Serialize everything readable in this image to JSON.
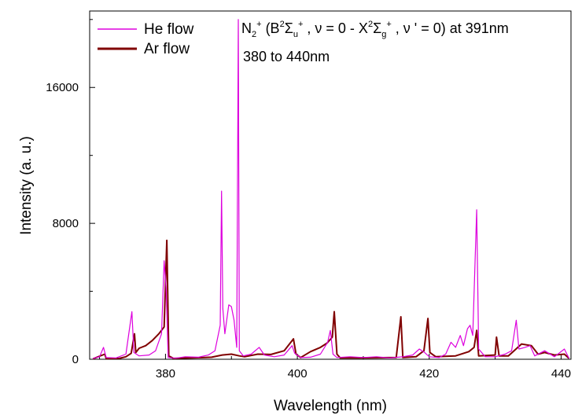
{
  "chart_data": {
    "type": "line",
    "title": "",
    "xlabel": "Wavelength (nm)",
    "ylabel": "Intensity (a. u.)",
    "xlim": [
      368.5,
      441.5
    ],
    "ylim": [
      0,
      20500
    ],
    "x_ticks": [
      380,
      400,
      420,
      440
    ],
    "x_tick_labels": [
      "380",
      "400",
      "420",
      "440"
    ],
    "y_ticks": [
      0,
      8000,
      16000
    ],
    "y_tick_labels": [
      "0",
      "8000",
      "16000"
    ],
    "legend_position": "top-left",
    "annotation": {
      "line1": {
        "n": "N",
        "n_sub": "2",
        "n_sup": "+",
        "open": " (B",
        "b_sup": "2",
        "sigma1": "Σ",
        "sigma1_sub": "u",
        "sigma1_sup": "+",
        "mid1": " , ν  = 0 - X",
        "x_sup": "2",
        "sigma2": "Σ",
        "sigma2_sub": "g",
        "sigma2_sup": "+",
        "tail": " , ν ' = 0) at 391nm"
      },
      "line2": "380 to 440nm"
    },
    "series": [
      {
        "name": "He flow",
        "color": "#dd00dd",
        "points": [
          [
            369,
            50
          ],
          [
            370,
            150
          ],
          [
            370.6,
            700
          ],
          [
            371,
            100
          ],
          [
            372.5,
            80
          ],
          [
            374,
            300
          ],
          [
            374.9,
            2800
          ],
          [
            375.2,
            400
          ],
          [
            376,
            200
          ],
          [
            377.5,
            250
          ],
          [
            378.5,
            500
          ],
          [
            379.4,
            1500
          ],
          [
            379.8,
            5800
          ],
          [
            380.1,
            4200
          ],
          [
            380.4,
            100
          ],
          [
            381.5,
            60
          ],
          [
            383,
            150
          ],
          [
            385,
            120
          ],
          [
            386.5,
            250
          ],
          [
            387.5,
            500
          ],
          [
            388.3,
            2000
          ],
          [
            388.5,
            9900
          ],
          [
            388.7,
            3000
          ],
          [
            389,
            1500
          ],
          [
            389.6,
            3200
          ],
          [
            390,
            3100
          ],
          [
            390.4,
            2300
          ],
          [
            390.6,
            1500
          ],
          [
            390.8,
            700
          ],
          [
            391.05,
            20000
          ],
          [
            391.2,
            500
          ],
          [
            391.8,
            200
          ],
          [
            393,
            300
          ],
          [
            394.2,
            700
          ],
          [
            395,
            250
          ],
          [
            396.5,
            150
          ],
          [
            398,
            250
          ],
          [
            399.2,
            800
          ],
          [
            399.6,
            350
          ],
          [
            400.5,
            100
          ],
          [
            402,
            120
          ],
          [
            403.5,
            300
          ],
          [
            404.6,
            1000
          ],
          [
            405,
            1700
          ],
          [
            405.4,
            300
          ],
          [
            406,
            100
          ],
          [
            408,
            150
          ],
          [
            410,
            100
          ],
          [
            412,
            150
          ],
          [
            414,
            80
          ],
          [
            416,
            150
          ],
          [
            417.5,
            250
          ],
          [
            418.5,
            600
          ],
          [
            419.3,
            400
          ],
          [
            420,
            150
          ],
          [
            421.5,
            100
          ],
          [
            422.5,
            300
          ],
          [
            423.3,
            1000
          ],
          [
            424,
            700
          ],
          [
            424.7,
            1400
          ],
          [
            425.2,
            800
          ],
          [
            425.8,
            1800
          ],
          [
            426.2,
            2000
          ],
          [
            426.6,
            1400
          ],
          [
            427.2,
            8800
          ],
          [
            427.5,
            600
          ],
          [
            428.5,
            150
          ],
          [
            430,
            150
          ],
          [
            431.5,
            300
          ],
          [
            432.5,
            500
          ],
          [
            433.2,
            2300
          ],
          [
            433.6,
            600
          ],
          [
            434.5,
            700
          ],
          [
            435.3,
            800
          ],
          [
            436,
            200
          ],
          [
            437.5,
            500
          ],
          [
            439,
            150
          ],
          [
            440.5,
            600
          ],
          [
            441.2,
            50
          ]
        ]
      },
      {
        "name": "Ar flow",
        "color": "#800000",
        "points": [
          [
            369,
            30
          ],
          [
            370.8,
            300
          ],
          [
            371,
            40
          ],
          [
            373,
            50
          ],
          [
            374,
            150
          ],
          [
            374.8,
            350
          ],
          [
            375.3,
            1500
          ],
          [
            375.5,
            400
          ],
          [
            376,
            650
          ],
          [
            377,
            800
          ],
          [
            378,
            1100
          ],
          [
            379,
            1500
          ],
          [
            379.8,
            1900
          ],
          [
            380.2,
            7000
          ],
          [
            380.5,
            200
          ],
          [
            381.2,
            50
          ],
          [
            384,
            80
          ],
          [
            387,
            120
          ],
          [
            388.6,
            250
          ],
          [
            390,
            300
          ],
          [
            391.2,
            200
          ],
          [
            392,
            150
          ],
          [
            394,
            300
          ],
          [
            396,
            280
          ],
          [
            398,
            500
          ],
          [
            399.4,
            1200
          ],
          [
            399.8,
            300
          ],
          [
            400.5,
            100
          ],
          [
            402,
            450
          ],
          [
            403.5,
            700
          ],
          [
            404.5,
            950
          ],
          [
            405.3,
            1300
          ],
          [
            405.6,
            2800
          ],
          [
            406,
            300
          ],
          [
            406.5,
            80
          ],
          [
            410,
            80
          ],
          [
            415,
            100
          ],
          [
            415.7,
            2500
          ],
          [
            416,
            100
          ],
          [
            418,
            150
          ],
          [
            419.2,
            500
          ],
          [
            419.8,
            2400
          ],
          [
            420.1,
            400
          ],
          [
            421,
            150
          ],
          [
            424,
            200
          ],
          [
            426,
            450
          ],
          [
            426.8,
            700
          ],
          [
            427.2,
            1700
          ],
          [
            427.5,
            200
          ],
          [
            430,
            250
          ],
          [
            430.2,
            1300
          ],
          [
            430.6,
            200
          ],
          [
            432,
            200
          ],
          [
            434,
            900
          ],
          [
            435.5,
            800
          ],
          [
            436.5,
            300
          ],
          [
            437.5,
            400
          ],
          [
            439,
            250
          ],
          [
            440.5,
            300
          ],
          [
            441.2,
            50
          ]
        ]
      }
    ]
  }
}
